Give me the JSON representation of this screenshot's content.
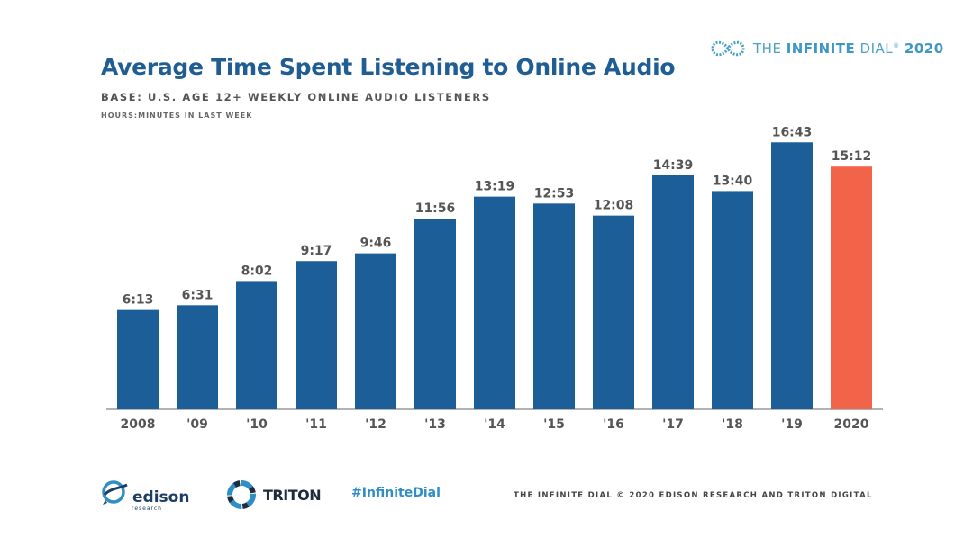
{
  "header": {
    "title": "Average Time Spent Listening to Online Audio",
    "subtitle": "BASE: U.S. AGE 12+ WEEKLY ONLINE AUDIO LISTENERS",
    "unit_note": "HOURS:MINUTES IN LAST WEEK"
  },
  "brand": {
    "prefix": "THE ",
    "strong": "INFINITE",
    "suffix": " DIAL",
    "mark": "®",
    "year": "2020"
  },
  "footer": {
    "edison_word": "edison",
    "edison_sub": "research",
    "triton_word": "TRITON",
    "hashtag": "#InfiniteDial",
    "copyright": "THE INFINITE DIAL   © 2020 EDISON RESEARCH AND TRITON DIGITAL"
  },
  "colors": {
    "bar": "#1b5e98",
    "highlight": "#f2644a",
    "title": "#1f5d93",
    "label": "#555555",
    "axis": "#999999"
  },
  "chart_data": {
    "type": "bar",
    "title": "Average Time Spent Listening to Online Audio",
    "ylabel": "HOURS:MINUTES IN LAST WEEK",
    "categories": [
      "2008",
      "'09",
      "'10",
      "'11",
      "'12",
      "'13",
      "'14",
      "'15",
      "'16",
      "'17",
      "'18",
      "'19",
      "2020"
    ],
    "labels": [
      "6:13",
      "6:31",
      "8:02",
      "9:17",
      "9:46",
      "11:56",
      "13:19",
      "12:53",
      "12:08",
      "14:39",
      "13:40",
      "16:43",
      "15:12"
    ],
    "values": [
      6.217,
      6.517,
      8.033,
      9.283,
      9.767,
      11.933,
      13.317,
      12.883,
      12.133,
      14.65,
      13.667,
      16.717,
      15.2
    ],
    "highlight_index": 12,
    "ylim": [
      0,
      20
    ],
    "grid": false
  }
}
